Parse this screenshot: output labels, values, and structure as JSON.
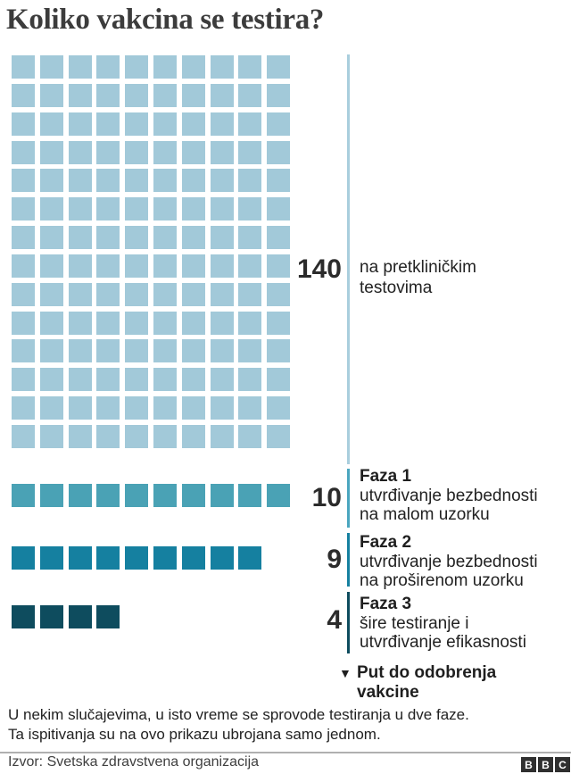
{
  "title": "Koliko vakcina se testira?",
  "chart_data": {
    "type": "waffle",
    "title": "Koliko vakcina se testira?",
    "columns": 10,
    "categories": [
      "na pretkliničkim testovima",
      "Faza 1",
      "Faza 2",
      "Faza 3"
    ],
    "values": [
      140,
      10,
      9,
      4
    ],
    "groups": [
      {
        "id": "preclinical",
        "count": 140,
        "value_label": "140",
        "color": "#a2c9d9",
        "line_color": "#a9cedd",
        "heading": "",
        "description_lines": [
          "na pretkliničkim",
          "testovima"
        ]
      },
      {
        "id": "faza-1",
        "count": 10,
        "value_label": "10",
        "color": "#4aa2b5",
        "line_color": "#4aa6bf",
        "heading": "Faza 1",
        "description_lines": [
          "utvrđivanje bezbednosti",
          "na malom uzorku"
        ]
      },
      {
        "id": "faza-2",
        "count": 9,
        "value_label": "9",
        "color": "#1580a0",
        "line_color": "#1580a0",
        "heading": "Faza 2",
        "description_lines": [
          "utvrđivanje bezbednosti",
          "na proširenom uzorku"
        ]
      },
      {
        "id": "faza-3",
        "count": 4,
        "value_label": "4",
        "color": "#0e4c5e",
        "line_color": "#0e4c5e",
        "heading": "Faza 3",
        "description_lines": [
          "šire testiranje i",
          "utvrđivanje efikasnosti"
        ]
      }
    ],
    "annotation": {
      "icon": "▼",
      "lines": [
        "Put do odobrenja",
        "vakcine"
      ]
    }
  },
  "footnote_lines": [
    "U nekim slučajevima, u isto vreme se sprovode testiranja u dve faze.",
    "Ta ispitivanja su na ovo prikazu ubrojana samo jednom."
  ],
  "source": {
    "label": "Izvor: Svetska zdravstvena organizacija",
    "logo_letters": [
      "B",
      "B",
      "C"
    ]
  }
}
